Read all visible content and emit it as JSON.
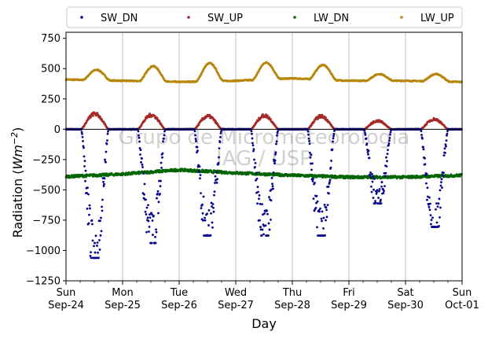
{
  "chart_data": {
    "type": "scatter",
    "xlabel": "Day",
    "ylabel": "Radiation (Wm⁻²)",
    "ylabel_main": "Radiation (",
    "ylabel_unit": "Wm",
    "ylabel_exp": "−2",
    "ylabel_close": ")",
    "ylim": [
      -1250,
      800
    ],
    "yticks": [
      750,
      500,
      250,
      0,
      -250,
      -500,
      -750,
      -1000,
      -1250
    ],
    "ytick_labels": [
      "750",
      "500",
      "250",
      "0",
      "−250",
      "−500",
      "−750",
      "−1000",
      "−1250"
    ],
    "xlim": [
      0,
      7
    ],
    "xticks": [
      {
        "day": 0,
        "weekday": "Sun",
        "date": "Sep-24"
      },
      {
        "day": 1,
        "weekday": "Mon",
        "date": "Sep-25"
      },
      {
        "day": 2,
        "weekday": "Tue",
        "date": "Sep-26"
      },
      {
        "day": 3,
        "weekday": "Wed",
        "date": "Sep-27"
      },
      {
        "day": 4,
        "weekday": "Thu",
        "date": "Sep-28"
      },
      {
        "day": 5,
        "weekday": "Fri",
        "date": "Sep-29"
      },
      {
        "day": 6,
        "weekday": "Sat",
        "date": "Sep-30"
      },
      {
        "day": 7,
        "weekday": "Sun",
        "date": "Oct-01"
      }
    ],
    "grid": "vertical",
    "legend": "top (above plot, horizontal)",
    "watermark_line1": "Grupo de Micrometeorologia",
    "watermark_line2": "IAG / USP",
    "series": [
      {
        "name": "SW_DN",
        "color": "#00008b",
        "daily_peak": [
          -1040,
          -920,
          -860,
          -860,
          -860,
          -600,
          -790
        ],
        "noise_fraction": 0.25
      },
      {
        "name": "SW_UP",
        "color": "#a52a2a",
        "daily_peak": [
          130,
          120,
          110,
          115,
          110,
          70,
          85
        ]
      },
      {
        "name": "LW_DN",
        "color": "#006400",
        "base_by_day": [
          -390,
          -370,
          -335,
          -360,
          -380,
          -395,
          -395,
          -380
        ]
      },
      {
        "name": "LW_UP",
        "color": "#b8860b",
        "night_by_day": [
          410,
          400,
          390,
          400,
          420,
          400,
          400,
          390
        ],
        "daily_peak": [
          490,
          520,
          545,
          550,
          530,
          455,
          455
        ]
      }
    ]
  }
}
